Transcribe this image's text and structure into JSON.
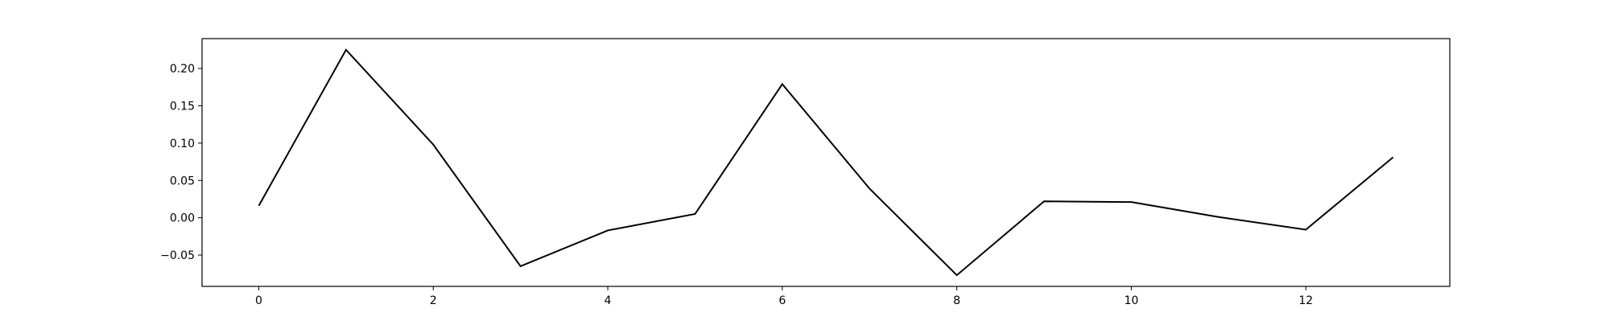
{
  "chart_data": {
    "type": "line",
    "title": "",
    "xlabel": "",
    "ylabel": "",
    "xlim": [
      -0.65,
      13.65
    ],
    "ylim": [
      -0.092,
      0.24
    ],
    "x": [
      0,
      1,
      2,
      3,
      4,
      5,
      6,
      7,
      8,
      9,
      10,
      11,
      12,
      13
    ],
    "xticks": [
      0,
      2,
      4,
      6,
      8,
      10,
      12
    ],
    "xtick_labels": [
      "0",
      "2",
      "4",
      "6",
      "8",
      "10",
      "12"
    ],
    "yticks": [
      -0.05,
      0.0,
      0.05,
      0.1,
      0.15,
      0.2
    ],
    "ytick_labels": [
      "−0.05",
      "0.00",
      "0.05",
      "0.10",
      "0.15",
      "0.20"
    ],
    "grid": false,
    "series": [
      {
        "color": "#000000",
        "values": [
          0.016,
          0.225,
          0.098,
          -0.065,
          -0.017,
          0.005,
          0.179,
          0.039,
          -0.077,
          0.022,
          0.021,
          0.001,
          -0.016,
          0.081
        ]
      }
    ]
  }
}
